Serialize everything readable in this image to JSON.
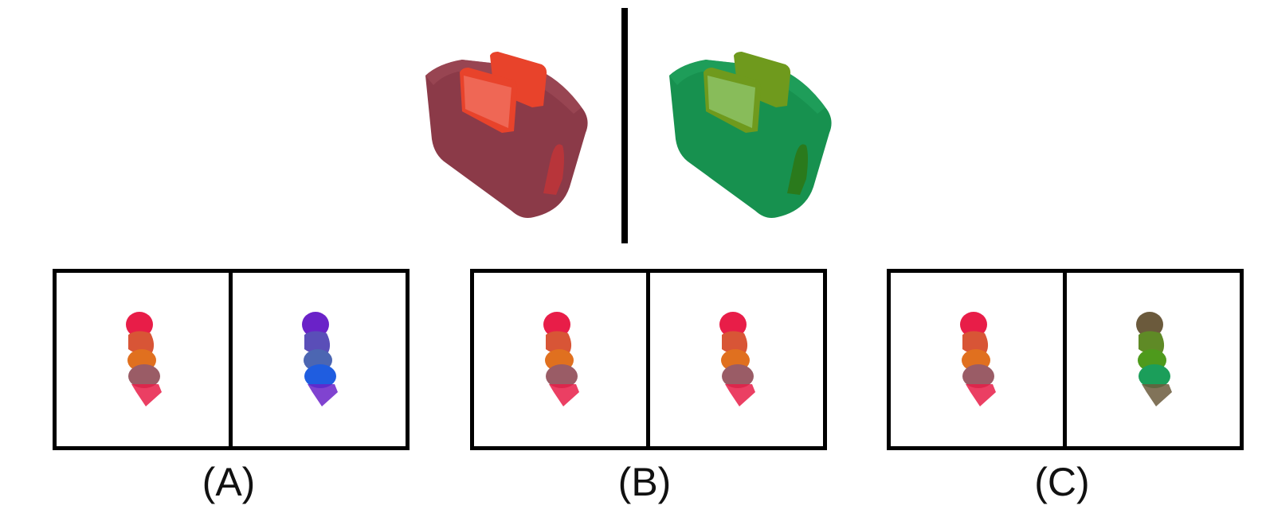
{
  "prompt": {
    "left_image": {
      "subject": "toaster-icon",
      "body_color": "#8b3a48",
      "accent_color": "#e8432b"
    },
    "right_image": {
      "subject": "toaster-icon",
      "body_color": "#17914f",
      "accent_color": "#6f9a1d"
    }
  },
  "options": [
    {
      "label": "(A)",
      "left": {
        "subject": "stacked-figure-icon",
        "colors": [
          "#e81d48",
          "#e0701f",
          "#9a5c66",
          "#e81d48"
        ]
      },
      "right": {
        "subject": "stacked-figure-icon",
        "colors": [
          "#6a22c8",
          "#4c66b2",
          "#1f5de0",
          "#6a22c8"
        ]
      }
    },
    {
      "label": "(B)",
      "left": {
        "subject": "stacked-figure-icon",
        "colors": [
          "#e81d48",
          "#e0701f",
          "#9a5c66",
          "#e81d48"
        ]
      },
      "right": {
        "subject": "stacked-figure-icon",
        "colors": [
          "#e81d48",
          "#e0701f",
          "#9a5c66",
          "#e81d48"
        ]
      }
    },
    {
      "label": "(C)",
      "left": {
        "subject": "stacked-figure-icon",
        "colors": [
          "#e81d48",
          "#e0701f",
          "#9a5c66",
          "#e81d48"
        ]
      },
      "right": {
        "subject": "stacked-figure-icon",
        "colors": [
          "#6b5a3c",
          "#4e9a1c",
          "#1b9e5a",
          "#6b5a3c"
        ]
      }
    }
  ]
}
